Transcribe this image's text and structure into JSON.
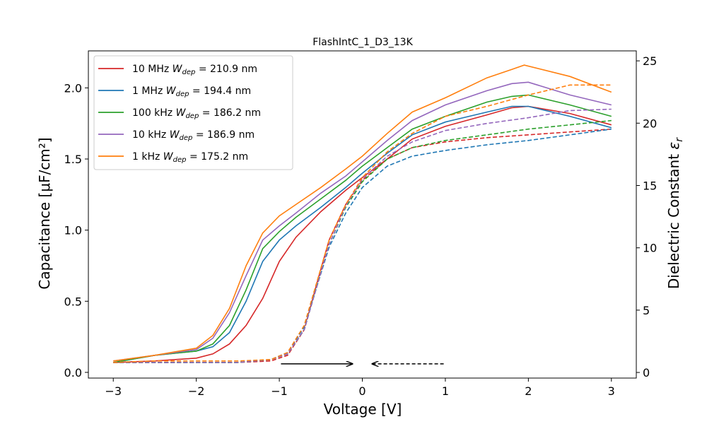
{
  "chart_data": {
    "type": "line",
    "title": "FlashIntC_1_D3_13K",
    "xlabel": "Voltage [V]",
    "ylabel": "Capacitance [μF/cm²]",
    "y2label": "Dielectric Constant ε_r",
    "xlim": [
      -3.3,
      3.3
    ],
    "ylim": [
      -0.04,
      2.26
    ],
    "y2lim": [
      -0.45,
      25.8
    ],
    "xticks": [
      -3,
      -2,
      -1,
      0,
      1,
      2,
      3
    ],
    "xtick_labels": [
      "−3",
      "−2",
      "−1",
      "0",
      "1",
      "2",
      "3"
    ],
    "yticks": [
      0.0,
      0.5,
      1.0,
      1.5,
      2.0
    ],
    "ytick_labels": [
      "0.0",
      "0.5",
      "1.0",
      "1.5",
      "2.0"
    ],
    "y2ticks": [
      0,
      5,
      10,
      15,
      20,
      25
    ],
    "y2tick_labels": [
      "0",
      "5",
      "10",
      "15",
      "20",
      "25"
    ],
    "legend_position": "upper-left",
    "grid": false,
    "series": [
      {
        "name": "10 MHz",
        "freq": "10 MHz",
        "wdep": "= 210.9 nm",
        "color": "#d62728",
        "forward": [
          [
            -3,
            0.07
          ],
          [
            -2.5,
            0.08
          ],
          [
            -2,
            0.1
          ],
          [
            -1.8,
            0.13
          ],
          [
            -1.6,
            0.2
          ],
          [
            -1.4,
            0.33
          ],
          [
            -1.2,
            0.52
          ],
          [
            -1.0,
            0.78
          ],
          [
            -0.8,
            0.95
          ],
          [
            -0.5,
            1.13
          ],
          [
            -0.2,
            1.28
          ],
          [
            0,
            1.37
          ],
          [
            0.3,
            1.5
          ],
          [
            0.6,
            1.64
          ],
          [
            1.0,
            1.73
          ],
          [
            1.5,
            1.81
          ],
          [
            1.8,
            1.86
          ],
          [
            2.0,
            1.87
          ],
          [
            2.5,
            1.82
          ],
          [
            3.0,
            1.74
          ]
        ],
        "reverse": [
          [
            -3,
            0.07
          ],
          [
            -2.5,
            0.07
          ],
          [
            -2,
            0.07
          ],
          [
            -1.5,
            0.07
          ],
          [
            -1.1,
            0.08
          ],
          [
            -0.9,
            0.12
          ],
          [
            -0.7,
            0.3
          ],
          [
            -0.55,
            0.62
          ],
          [
            -0.4,
            0.93
          ],
          [
            -0.2,
            1.18
          ],
          [
            0,
            1.35
          ],
          [
            0.3,
            1.5
          ],
          [
            0.6,
            1.58
          ],
          [
            1.0,
            1.62
          ],
          [
            1.5,
            1.65
          ],
          [
            2.0,
            1.67
          ],
          [
            2.5,
            1.69
          ],
          [
            3.0,
            1.71
          ]
        ]
      },
      {
        "name": "1 MHz",
        "freq": "1 MHz",
        "wdep": "= 194.4 nm",
        "color": "#1f77b4",
        "forward": [
          [
            -3,
            0.07
          ],
          [
            -2.5,
            0.12
          ],
          [
            -2,
            0.15
          ],
          [
            -1.8,
            0.18
          ],
          [
            -1.6,
            0.28
          ],
          [
            -1.4,
            0.5
          ],
          [
            -1.2,
            0.78
          ],
          [
            -1.0,
            0.93
          ],
          [
            -0.8,
            1.03
          ],
          [
            -0.5,
            1.16
          ],
          [
            -0.2,
            1.3
          ],
          [
            0,
            1.4
          ],
          [
            0.3,
            1.54
          ],
          [
            0.6,
            1.67
          ],
          [
            1.0,
            1.76
          ],
          [
            1.5,
            1.83
          ],
          [
            1.8,
            1.87
          ],
          [
            2.0,
            1.87
          ],
          [
            2.5,
            1.8
          ],
          [
            3.0,
            1.72
          ]
        ],
        "reverse": [
          [
            -3,
            0.07
          ],
          [
            -2.5,
            0.07
          ],
          [
            -2,
            0.07
          ],
          [
            -1.5,
            0.07
          ],
          [
            -1.1,
            0.09
          ],
          [
            -0.9,
            0.14
          ],
          [
            -0.7,
            0.32
          ],
          [
            -0.55,
            0.6
          ],
          [
            -0.4,
            0.88
          ],
          [
            -0.2,
            1.12
          ],
          [
            0,
            1.3
          ],
          [
            0.3,
            1.45
          ],
          [
            0.6,
            1.52
          ],
          [
            1.0,
            1.56
          ],
          [
            1.5,
            1.6
          ],
          [
            2.0,
            1.63
          ],
          [
            2.5,
            1.67
          ],
          [
            3.0,
            1.71
          ]
        ]
      },
      {
        "name": "100 kHz",
        "freq": "100 kHz",
        "wdep": "= 186.2 nm",
        "color": "#2ca02c",
        "forward": [
          [
            -3,
            0.07
          ],
          [
            -2.5,
            0.12
          ],
          [
            -2,
            0.15
          ],
          [
            -1.8,
            0.2
          ],
          [
            -1.6,
            0.33
          ],
          [
            -1.4,
            0.58
          ],
          [
            -1.2,
            0.87
          ],
          [
            -1.0,
            0.99
          ],
          [
            -0.8,
            1.09
          ],
          [
            -0.5,
            1.22
          ],
          [
            -0.2,
            1.35
          ],
          [
            0,
            1.45
          ],
          [
            0.3,
            1.58
          ],
          [
            0.6,
            1.71
          ],
          [
            1.0,
            1.8
          ],
          [
            1.5,
            1.9
          ],
          [
            1.8,
            1.94
          ],
          [
            2.0,
            1.95
          ],
          [
            2.5,
            1.88
          ],
          [
            3.0,
            1.8
          ]
        ],
        "reverse": [
          [
            -3,
            0.07
          ],
          [
            -2.5,
            0.07
          ],
          [
            -2,
            0.07
          ],
          [
            -1.5,
            0.07
          ],
          [
            -1.1,
            0.09
          ],
          [
            -0.9,
            0.13
          ],
          [
            -0.7,
            0.3
          ],
          [
            -0.55,
            0.6
          ],
          [
            -0.4,
            0.9
          ],
          [
            -0.2,
            1.16
          ],
          [
            0,
            1.34
          ],
          [
            0.3,
            1.5
          ],
          [
            0.6,
            1.58
          ],
          [
            1.0,
            1.63
          ],
          [
            1.5,
            1.67
          ],
          [
            2.0,
            1.71
          ],
          [
            2.5,
            1.74
          ],
          [
            3.0,
            1.77
          ]
        ]
      },
      {
        "name": "10 kHz",
        "freq": "10 kHz",
        "wdep": "= 186.9 nm",
        "color": "#9467bd",
        "forward": [
          [
            -3,
            0.08
          ],
          [
            -2.5,
            0.12
          ],
          [
            -2,
            0.16
          ],
          [
            -1.8,
            0.24
          ],
          [
            -1.6,
            0.42
          ],
          [
            -1.4,
            0.68
          ],
          [
            -1.2,
            0.93
          ],
          [
            -1.0,
            1.03
          ],
          [
            -0.8,
            1.12
          ],
          [
            -0.5,
            1.26
          ],
          [
            -0.2,
            1.38
          ],
          [
            0,
            1.48
          ],
          [
            0.3,
            1.63
          ],
          [
            0.6,
            1.77
          ],
          [
            1.0,
            1.88
          ],
          [
            1.5,
            1.98
          ],
          [
            1.8,
            2.03
          ],
          [
            2.0,
            2.04
          ],
          [
            2.5,
            1.95
          ],
          [
            3.0,
            1.88
          ]
        ],
        "reverse": [
          [
            -3,
            0.07
          ],
          [
            -2.5,
            0.07
          ],
          [
            -2,
            0.07
          ],
          [
            -1.5,
            0.07
          ],
          [
            -1.1,
            0.09
          ],
          [
            -0.9,
            0.13
          ],
          [
            -0.7,
            0.3
          ],
          [
            -0.55,
            0.6
          ],
          [
            -0.4,
            0.9
          ],
          [
            -0.2,
            1.17
          ],
          [
            0,
            1.36
          ],
          [
            0.3,
            1.52
          ],
          [
            0.6,
            1.62
          ],
          [
            1.0,
            1.7
          ],
          [
            1.5,
            1.75
          ],
          [
            2.0,
            1.79
          ],
          [
            2.5,
            1.84
          ],
          [
            3.0,
            1.85
          ]
        ]
      },
      {
        "name": "1 kHz",
        "freq": "1 kHz",
        "wdep": "= 175.2 nm",
        "color": "#ff7f0e",
        "forward": [
          [
            -3,
            0.08
          ],
          [
            -2.5,
            0.12
          ],
          [
            -2,
            0.17
          ],
          [
            -1.8,
            0.26
          ],
          [
            -1.6,
            0.45
          ],
          [
            -1.4,
            0.75
          ],
          [
            -1.2,
            0.98
          ],
          [
            -1.0,
            1.1
          ],
          [
            -0.8,
            1.18
          ],
          [
            -0.5,
            1.3
          ],
          [
            -0.2,
            1.43
          ],
          [
            0,
            1.52
          ],
          [
            0.3,
            1.68
          ],
          [
            0.6,
            1.83
          ],
          [
            1.0,
            1.93
          ],
          [
            1.5,
            2.07
          ],
          [
            1.8,
            2.13
          ],
          [
            1.95,
            2.16
          ],
          [
            2.5,
            2.08
          ],
          [
            3.0,
            1.97
          ]
        ],
        "reverse": [
          [
            -3,
            0.07
          ],
          [
            -2.5,
            0.08
          ],
          [
            -2,
            0.08
          ],
          [
            -1.5,
            0.08
          ],
          [
            -1.1,
            0.09
          ],
          [
            -0.9,
            0.14
          ],
          [
            -0.7,
            0.33
          ],
          [
            -0.55,
            0.63
          ],
          [
            -0.4,
            0.93
          ],
          [
            -0.2,
            1.18
          ],
          [
            0,
            1.37
          ],
          [
            0.3,
            1.55
          ],
          [
            0.6,
            1.68
          ],
          [
            1.0,
            1.8
          ],
          [
            1.5,
            1.87
          ],
          [
            2.0,
            1.95
          ],
          [
            2.5,
            2.02
          ],
          [
            3.0,
            2.02
          ]
        ]
      }
    ],
    "annotations": [
      {
        "name": "forward-sweep-arrow",
        "from": [
          -0.98,
          0.06
        ],
        "to": [
          -0.12,
          0.06
        ],
        "style": "solid"
      },
      {
        "name": "reverse-sweep-arrow",
        "from": [
          0.98,
          0.06
        ],
        "to": [
          0.12,
          0.06
        ],
        "style": "dashed"
      }
    ]
  }
}
